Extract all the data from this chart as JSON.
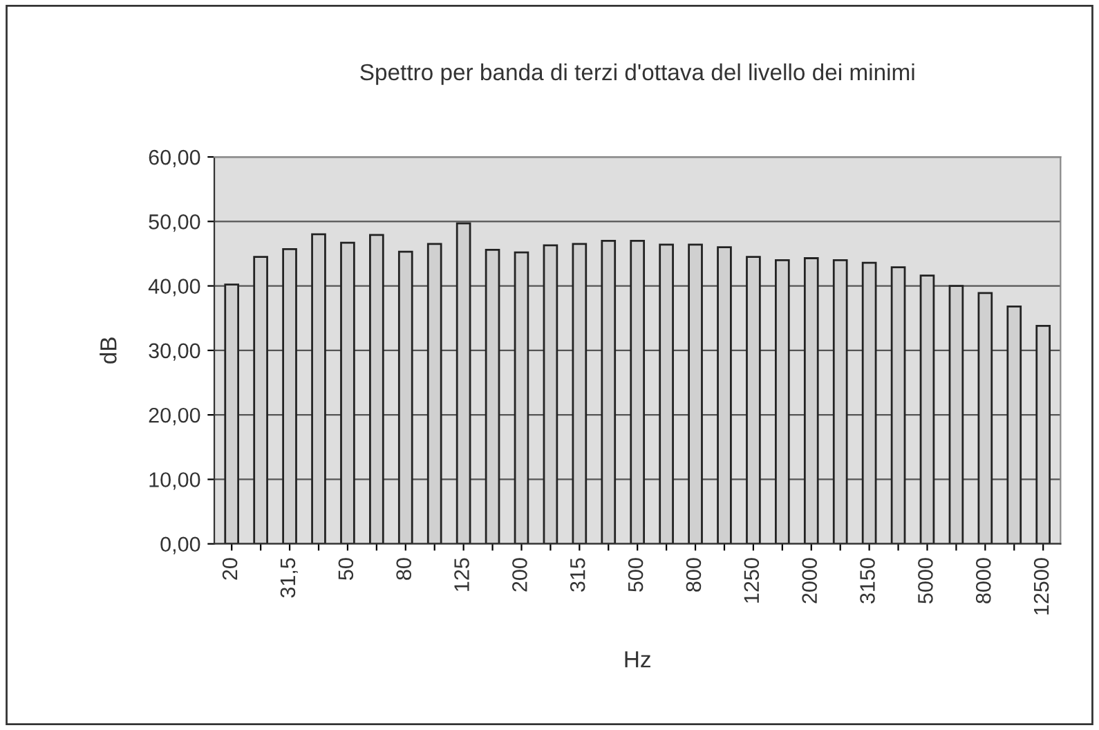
{
  "chart_data": {
    "type": "bar",
    "title": "Spettro per banda di terzi d'ottava del livello dei minimi",
    "xlabel": "Hz",
    "ylabel": "dB",
    "categories": [
      "20",
      null,
      "31,5",
      null,
      "50",
      null,
      "80",
      null,
      "125",
      null,
      "200",
      null,
      "315",
      null,
      "500",
      null,
      "800",
      null,
      "1250",
      null,
      "2000",
      null,
      "3150",
      null,
      "5000",
      null,
      "8000",
      null,
      "12500"
    ],
    "values": [
      40.2,
      44.5,
      45.7,
      48.0,
      46.7,
      47.9,
      45.3,
      46.5,
      49.7,
      45.6,
      45.2,
      46.3,
      46.5,
      47.0,
      47.0,
      46.4,
      46.4,
      46.0,
      44.5,
      44.0,
      44.3,
      44.0,
      43.6,
      42.9,
      41.6,
      40.0,
      38.9,
      36.8,
      33.8
    ],
    "color": "#d0d0d0",
    "ylim": [
      0,
      60
    ],
    "yticks": [
      {
        "value": 0,
        "label": "0,00"
      },
      {
        "value": 10,
        "label": "10,00"
      },
      {
        "value": 20,
        "label": "20,00"
      },
      {
        "value": 30,
        "label": "30,00"
      },
      {
        "value": 40,
        "label": "40,00"
      },
      {
        "value": 50,
        "label": "50,00"
      },
      {
        "value": 60,
        "label": "60,00"
      }
    ],
    "grid": "y"
  }
}
